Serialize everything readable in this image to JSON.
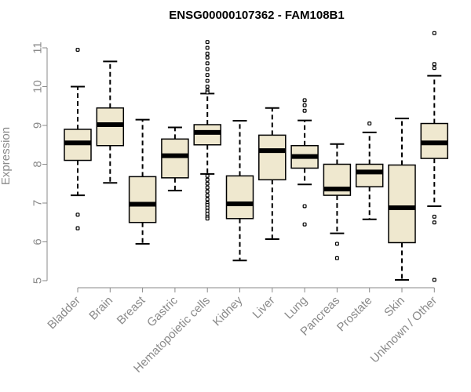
{
  "chart_data": {
    "type": "box",
    "title": "ENSG00000107362 - FAM108B1",
    "xlabel": "",
    "ylabel": "Expression",
    "ylim": [
      5,
      11
    ],
    "yticks": [
      5,
      6,
      7,
      8,
      9,
      10,
      11
    ],
    "grid": false,
    "legend": "none",
    "categories": [
      "Bladder",
      "Brain",
      "Breast",
      "Gastric",
      "Hematopoietic cells",
      "Kidney",
      "Liver",
      "Lung",
      "Pancreas",
      "Prostate",
      "Skin",
      "Unknown / Other"
    ],
    "series": [
      {
        "category": "Bladder",
        "whisker_low": 7.2,
        "q1": 8.1,
        "median": 8.55,
        "q3": 8.9,
        "whisker_high": 10.0,
        "outliers": [
          10.95,
          6.7,
          6.35
        ]
      },
      {
        "category": "Brain",
        "whisker_low": 7.52,
        "q1": 8.48,
        "median": 9.02,
        "q3": 9.45,
        "whisker_high": 10.65,
        "outliers": []
      },
      {
        "category": "Breast",
        "whisker_low": 5.95,
        "q1": 6.5,
        "median": 6.97,
        "q3": 7.68,
        "whisker_high": 9.15,
        "outliers": []
      },
      {
        "category": "Gastric",
        "whisker_low": 7.32,
        "q1": 7.65,
        "median": 8.22,
        "q3": 8.65,
        "whisker_high": 8.95,
        "outliers": []
      },
      {
        "category": "Hematopoietic cells",
        "whisker_low": 7.75,
        "q1": 8.5,
        "median": 8.82,
        "q3": 9.02,
        "whisker_high": 9.82,
        "outliers": [
          11.15,
          11.0,
          10.85,
          10.75,
          10.6,
          10.45,
          10.3,
          10.15,
          10.0,
          9.9,
          9.85,
          7.7,
          7.6,
          7.5,
          7.4,
          7.3,
          7.2,
          7.1,
          7.0,
          6.95,
          6.88,
          6.8,
          6.72,
          6.65,
          6.6
        ]
      },
      {
        "category": "Kidney",
        "whisker_low": 5.52,
        "q1": 6.6,
        "median": 6.98,
        "q3": 7.7,
        "whisker_high": 9.12,
        "outliers": []
      },
      {
        "category": "Liver",
        "whisker_low": 6.07,
        "q1": 7.6,
        "median": 8.35,
        "q3": 8.75,
        "whisker_high": 9.45,
        "outliers": []
      },
      {
        "category": "Lung",
        "whisker_low": 7.48,
        "q1": 7.9,
        "median": 8.2,
        "q3": 8.48,
        "whisker_high": 9.13,
        "outliers": [
          9.65,
          9.52,
          9.38,
          6.92,
          6.45
        ]
      },
      {
        "category": "Pancreas",
        "whisker_low": 6.22,
        "q1": 7.2,
        "median": 7.36,
        "q3": 8.0,
        "whisker_high": 8.52,
        "outliers": [
          5.95,
          5.58
        ]
      },
      {
        "category": "Prostate",
        "whisker_low": 6.58,
        "q1": 7.42,
        "median": 7.8,
        "q3": 8.0,
        "whisker_high": 8.82,
        "outliers": [
          9.05
        ]
      },
      {
        "category": "Skin",
        "whisker_low": 5.02,
        "q1": 5.98,
        "median": 6.88,
        "q3": 7.98,
        "whisker_high": 9.18,
        "outliers": []
      },
      {
        "category": "Unknown / Other",
        "whisker_low": 6.92,
        "q1": 8.15,
        "median": 8.55,
        "q3": 9.05,
        "whisker_high": 10.28,
        "outliers": [
          11.38,
          10.58,
          10.48,
          6.65,
          6.5,
          5.02
        ]
      }
    ],
    "colors": {
      "box_fill": "#efe8cf",
      "stroke": "#000000",
      "axis": "#8a8a8a"
    }
  }
}
